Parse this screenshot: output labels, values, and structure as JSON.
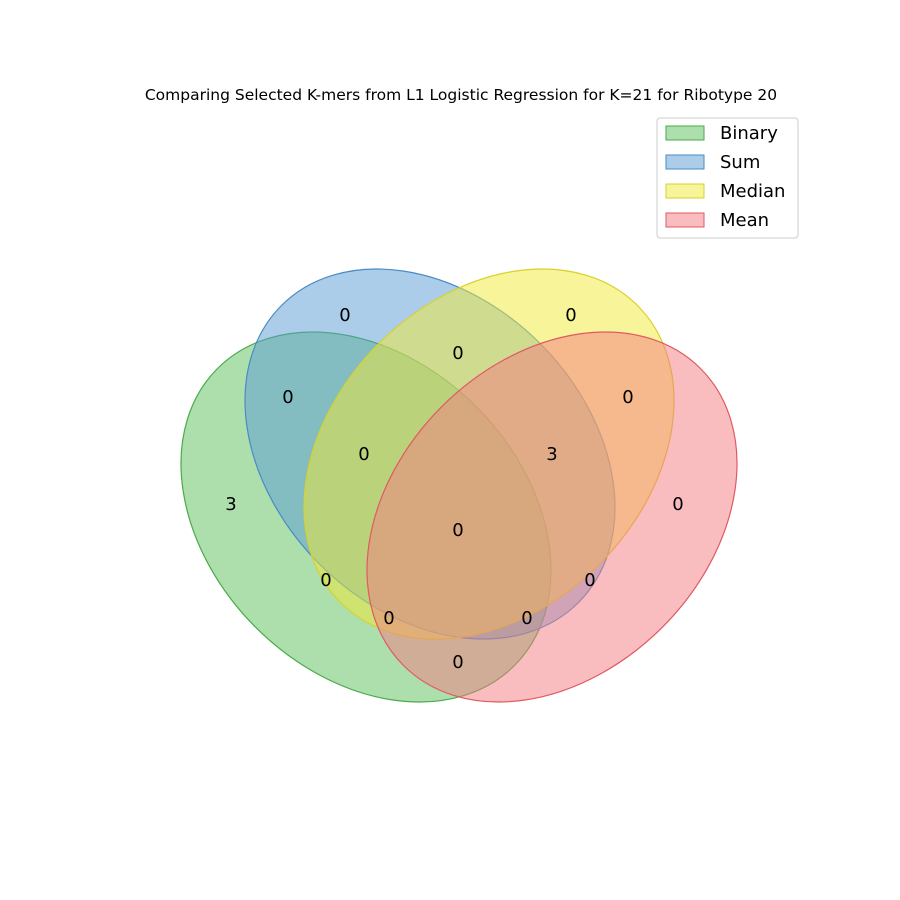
{
  "title": "Comparing Selected K-mers from L1 Logistic Regression for K=21 for Ribotype 20",
  "sets": [
    {
      "name": "Binary",
      "color": "#5cbf5c",
      "edge": "#4aaa4a"
    },
    {
      "name": "Sum",
      "color": "#5a9bd5",
      "edge": "#4a8bc5"
    },
    {
      "name": "Median",
      "color": "#f2ea33",
      "edge": "#d9d12a"
    },
    {
      "name": "Mean",
      "color": "#f37b82",
      "edge": "#e05a62"
    }
  ],
  "regions": [
    {
      "sets": [
        "Sum"
      ],
      "count": "0"
    },
    {
      "sets": [
        "Median"
      ],
      "count": "0"
    },
    {
      "sets": [
        "Sum",
        "Median"
      ],
      "count": "0"
    },
    {
      "sets": [
        "Binary",
        "Sum"
      ],
      "count": "0"
    },
    {
      "sets": [
        "Median",
        "Mean"
      ],
      "count": "0"
    },
    {
      "sets": [
        "Binary",
        "Sum",
        "Median"
      ],
      "count": "0"
    },
    {
      "sets": [
        "Sum",
        "Median",
        "Mean"
      ],
      "count": "3"
    },
    {
      "sets": [
        "Binary"
      ],
      "count": "3"
    },
    {
      "sets": [
        "Mean"
      ],
      "count": "0"
    },
    {
      "sets": [
        "Binary",
        "Sum",
        "Median",
        "Mean"
      ],
      "count": "0"
    },
    {
      "sets": [
        "Binary",
        "Median"
      ],
      "count": "0"
    },
    {
      "sets": [
        "Sum",
        "Mean"
      ],
      "count": "0"
    },
    {
      "sets": [
        "Binary",
        "Median",
        "Mean"
      ],
      "count": "0"
    },
    {
      "sets": [
        "Binary",
        "Sum",
        "Mean"
      ],
      "count": "0"
    },
    {
      "sets": [
        "Binary",
        "Mean"
      ],
      "count": "0"
    }
  ],
  "legend": {
    "position": "top-right"
  }
}
